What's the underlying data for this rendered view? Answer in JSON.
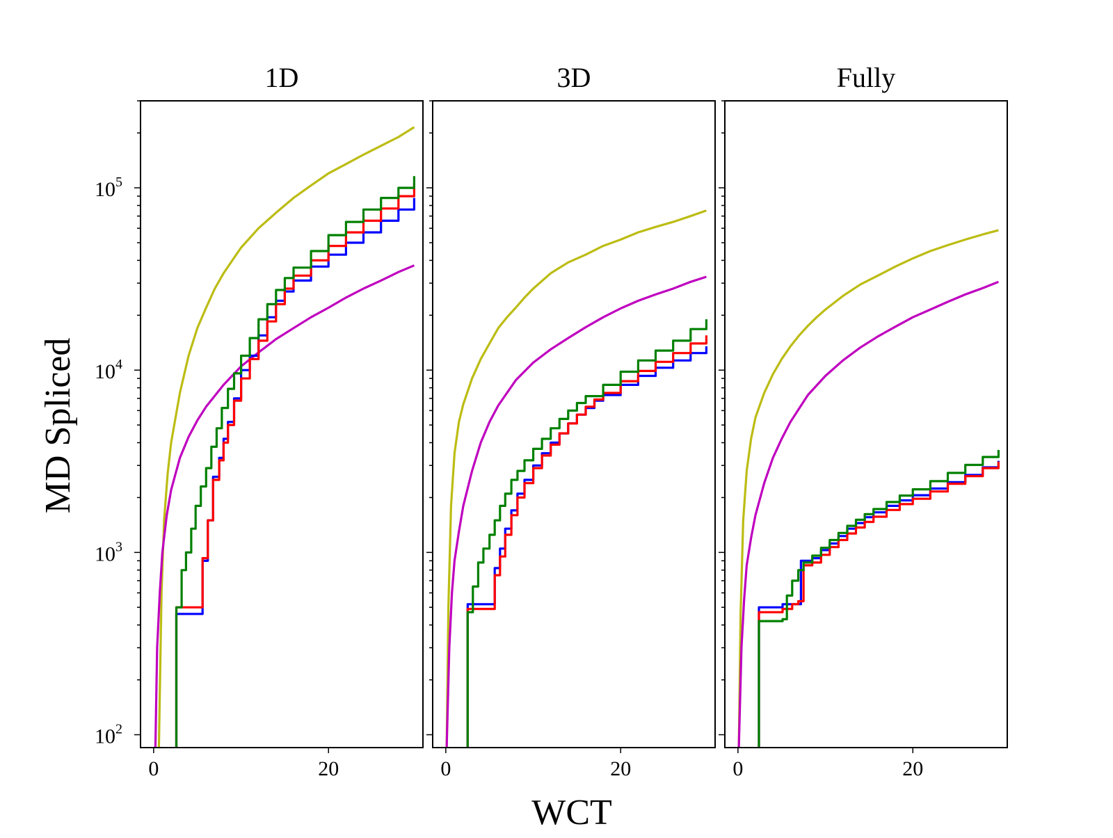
{
  "chart_data": {
    "type": "line",
    "yscale": "log",
    "xlabel": "WCT",
    "ylabel": "MD Spliced",
    "xlim": [
      -1.5,
      30.8
    ],
    "ylim": [
      85,
      300000
    ],
    "xticks": [
      0,
      20
    ],
    "yticks": [
      {
        "value": 100,
        "base": "10",
        "exp": "2"
      },
      {
        "value": 1000,
        "base": "10",
        "exp": "3"
      },
      {
        "value": 10000,
        "base": "10",
        "exp": "4"
      },
      {
        "value": 100000,
        "base": "10",
        "exp": "5"
      }
    ],
    "series_colors": [
      "#bcbc14",
      "#bf00bf",
      "#0000ff",
      "#ff0000",
      "#008000"
    ],
    "panels": [
      {
        "title": "1D",
        "series": [
          {
            "name": "yellow",
            "color": "#bcbc14",
            "step": false,
            "x": [
              0.6,
              0.9,
              1.2,
              1.6,
              2,
              3,
              4,
              5,
              6,
              7,
              8,
              9,
              10,
              12,
              14,
              16,
              18,
              20,
              22,
              24,
              26,
              28,
              29.8
            ],
            "y": [
              85,
              600,
              1500,
              2700,
              4000,
              7500,
              12000,
              17000,
              22000,
              28000,
              34000,
              40000,
              47000,
              60000,
              73000,
              88000,
              103000,
              120000,
              135000,
              152000,
              170000,
              190000,
              215000
            ]
          },
          {
            "name": "magenta",
            "color": "#bf00bf",
            "step": false,
            "x": [
              0.2,
              0.4,
              0.7,
              1,
              1.5,
              2,
              3,
              4,
              5,
              6,
              8,
              10,
              12,
              14,
              16,
              18,
              20,
              22,
              24,
              26,
              28,
              29.8
            ],
            "y": [
              85,
              300,
              600,
              1000,
              1600,
              2200,
              3300,
              4300,
              5300,
              6300,
              8300,
              10500,
              12500,
              14800,
              17000,
              19500,
              22000,
              25000,
              28000,
              31000,
              34500,
              37500
            ]
          },
          {
            "name": "blue",
            "color": "#0000ff",
            "step": true,
            "x": [
              2.6,
              2.6,
              5.1,
              5.6,
              6.2,
              6.8,
              7.5,
              8,
              8.5,
              9.2,
              10,
              11,
              12,
              13,
              14,
              15,
              16,
              18,
              20,
              22,
              24,
              26,
              28,
              29.8
            ],
            "y": [
              85,
              460,
              460,
              900,
              1500,
              2600,
              3300,
              4200,
              5200,
              7000,
              10000,
              12000,
              15500,
              19500,
              24000,
              27000,
              31000,
              37000,
              43000,
              50000,
              57000,
              66000,
              76000,
              88000
            ]
          },
          {
            "name": "red",
            "color": "#ff0000",
            "step": true,
            "x": [
              2.6,
              2.6,
              5.1,
              5.6,
              6.2,
              6.8,
              7.5,
              8,
              8.5,
              9.2,
              10,
              11,
              12,
              13,
              14,
              15,
              16,
              18,
              20,
              22,
              24,
              26,
              28,
              29.8
            ],
            "y": [
              85,
              500,
              500,
              930,
              1500,
              2500,
              3200,
              4000,
              5000,
              6800,
              9000,
              11500,
              14500,
              18500,
              23000,
              28000,
              33000,
              40000,
              48000,
              57000,
              66000,
              77000,
              90000,
              106000
            ]
          },
          {
            "name": "green",
            "color": "#008000",
            "step": true,
            "x": [
              2.6,
              2.6,
              3.2,
              3.7,
              4.3,
              4.8,
              5.4,
              6,
              6.6,
              7.2,
              7.8,
              8.5,
              9.2,
              10,
              11,
              12,
              13,
              14,
              15,
              16,
              18,
              20,
              22,
              24,
              26,
              28,
              29.8
            ],
            "y": [
              85,
              500,
              800,
              1000,
              1350,
              1800,
              2300,
              2900,
              3800,
              4800,
              6200,
              7900,
              9600,
              12000,
              15000,
              19000,
              23000,
              27500,
              32000,
              36500,
              45000,
              55000,
              65000,
              76000,
              88000,
              100000,
              116000
            ]
          }
        ]
      },
      {
        "title": "3D",
        "series": [
          {
            "name": "yellow",
            "color": "#bcbc14",
            "step": false,
            "x": [
              0.1,
              0.3,
              0.6,
              1,
              1.5,
              2,
              3,
              4,
              5,
              6,
              7,
              8,
              9,
              10,
              12,
              14,
              16,
              18,
              20,
              22,
              24,
              26,
              28,
              29.8
            ],
            "y": [
              85,
              500,
              1800,
              3500,
              5200,
              6500,
              9000,
              11500,
              14000,
              17000,
              19500,
              22000,
              25000,
              28000,
              34000,
              39000,
              43000,
              48000,
              52000,
              57000,
              61000,
              65000,
              70000,
              75000
            ]
          },
          {
            "name": "magenta",
            "color": "#bf00bf",
            "step": false,
            "x": [
              0.1,
              0.4,
              0.7,
              1,
              1.5,
              2,
              3,
              4,
              5,
              6,
              8,
              10,
              12,
              14,
              16,
              18,
              20,
              22,
              24,
              26,
              28,
              29.8
            ],
            "y": [
              85,
              300,
              600,
              900,
              1300,
              1800,
              2800,
              4000,
              5200,
              6400,
              8800,
              11000,
              13000,
              15000,
              17200,
              19500,
              21800,
              24000,
              26000,
              28000,
              30500,
              32500
            ]
          },
          {
            "name": "blue",
            "color": "#0000ff",
            "step": true,
            "x": [
              2.5,
              2.5,
              5.1,
              5.6,
              6.2,
              6.8,
              7.5,
              8.2,
              9,
              10,
              11,
              12,
              13,
              14,
              15,
              16,
              17,
              18,
              20,
              22,
              24,
              26,
              28,
              29.8
            ],
            "y": [
              85,
              520,
              520,
              820,
              1050,
              1350,
              1700,
              2100,
              2500,
              3000,
              3500,
              4000,
              4500,
              5100,
              5700,
              6200,
              6800,
              7300,
              8300,
              9300,
              10300,
              11300,
              12400,
              13500
            ]
          },
          {
            "name": "red",
            "color": "#ff0000",
            "step": true,
            "x": [
              2.5,
              2.5,
              5.1,
              5.6,
              6.2,
              6.8,
              7.5,
              8.2,
              9,
              10,
              11,
              12,
              13,
              14,
              15,
              16,
              17,
              18,
              20,
              22,
              24,
              26,
              28,
              29.8
            ],
            "y": [
              85,
              490,
              490,
              750,
              950,
              1250,
              1600,
              2000,
              2400,
              2900,
              3400,
              3900,
              4500,
              5100,
              5700,
              6300,
              6900,
              7500,
              8700,
              9900,
              11100,
              12400,
              14000,
              15500
            ]
          },
          {
            "name": "green",
            "color": "#008000",
            "step": true,
            "x": [
              2.5,
              2.5,
              3.1,
              3.7,
              4.3,
              5,
              5.6,
              6.2,
              6.8,
              7.5,
              8.2,
              9,
              10,
              11,
              12,
              13,
              14,
              15,
              16,
              18,
              20,
              22,
              24,
              26,
              28,
              29.8
            ],
            "y": [
              85,
              470,
              650,
              880,
              1050,
              1250,
              1500,
              1800,
              2100,
              2500,
              2800,
              3200,
              3700,
              4200,
              4800,
              5400,
              6000,
              6600,
              7200,
              8300,
              9800,
              11300,
              12800,
              14500,
              16800,
              19000
            ]
          }
        ]
      },
      {
        "title": "Fully",
        "series": [
          {
            "name": "yellow",
            "color": "#bcbc14",
            "step": false,
            "x": [
              0.1,
              0.3,
              0.6,
              1,
              1.5,
              2,
              3,
              4,
              5,
              6,
              7,
              8,
              9,
              10,
              12,
              14,
              16,
              18,
              20,
              22,
              24,
              26,
              28,
              29.8
            ],
            "y": [
              85,
              450,
              1500,
              2800,
              4200,
              5500,
              7500,
              9500,
              11500,
              13500,
              15500,
              17500,
              19500,
              21500,
              25500,
              29500,
              33000,
              37000,
              41000,
              45000,
              48500,
              52000,
              55500,
              58500
            ]
          },
          {
            "name": "magenta",
            "color": "#bf00bf",
            "step": false,
            "x": [
              0.1,
              0.4,
              0.7,
              1,
              1.5,
              2,
              3,
              4,
              5,
              6,
              8,
              10,
              12,
              14,
              16,
              18,
              20,
              22,
              24,
              26,
              28,
              29.8
            ],
            "y": [
              85,
              300,
              550,
              850,
              1200,
              1600,
              2400,
              3300,
              4200,
              5200,
              7300,
              9300,
              11300,
              13300,
              15300,
              17300,
              19500,
              21500,
              23700,
              26000,
              28200,
              30500
            ]
          },
          {
            "name": "blue",
            "color": "#0000ff",
            "step": true,
            "x": [
              2.4,
              2.4,
              5.1,
              5.1,
              7.2,
              7.2,
              8.5,
              9.5,
              10.5,
              11.5,
              12.5,
              13.5,
              14.5,
              15.5,
              17,
              18.5,
              20,
              22,
              24,
              26,
              28,
              29.8
            ],
            "y": [
              85,
              500,
              500,
              520,
              520,
              900,
              930,
              1030,
              1120,
              1230,
              1350,
              1450,
              1560,
              1660,
              1800,
              1930,
              2060,
              2240,
              2430,
              2660,
              2930,
              3180
            ]
          },
          {
            "name": "red",
            "color": "#ff0000",
            "step": true,
            "x": [
              2.4,
              2.4,
              5.1,
              5.1,
              6.2,
              6.9,
              7.5,
              7.5,
              8.5,
              9.5,
              10.5,
              11.5,
              12.5,
              13.5,
              14.5,
              15.5,
              17,
              18.5,
              20,
              22,
              24,
              26,
              28,
              29.8
            ],
            "y": [
              85,
              470,
              470,
              490,
              520,
              540,
              540,
              850,
              880,
              970,
              1070,
              1170,
              1270,
              1370,
              1470,
              1570,
              1710,
              1840,
              1970,
              2160,
              2380,
              2620,
              2900,
              3150
            ]
          },
          {
            "name": "green",
            "color": "#008000",
            "step": true,
            "x": [
              2.4,
              2.4,
              5.1,
              5.6,
              6.2,
              6.9,
              7.5,
              8.5,
              9.5,
              10.5,
              11.5,
              12.5,
              13.5,
              14.5,
              15.5,
              17,
              18.5,
              20,
              22,
              24,
              26,
              28,
              29.8
            ],
            "y": [
              85,
              420,
              430,
              580,
              700,
              800,
              880,
              960,
              1060,
              1170,
              1280,
              1400,
              1510,
              1620,
              1730,
              1890,
              2050,
              2220,
              2460,
              2730,
              3020,
              3340,
              3650
            ]
          }
        ]
      }
    ]
  }
}
